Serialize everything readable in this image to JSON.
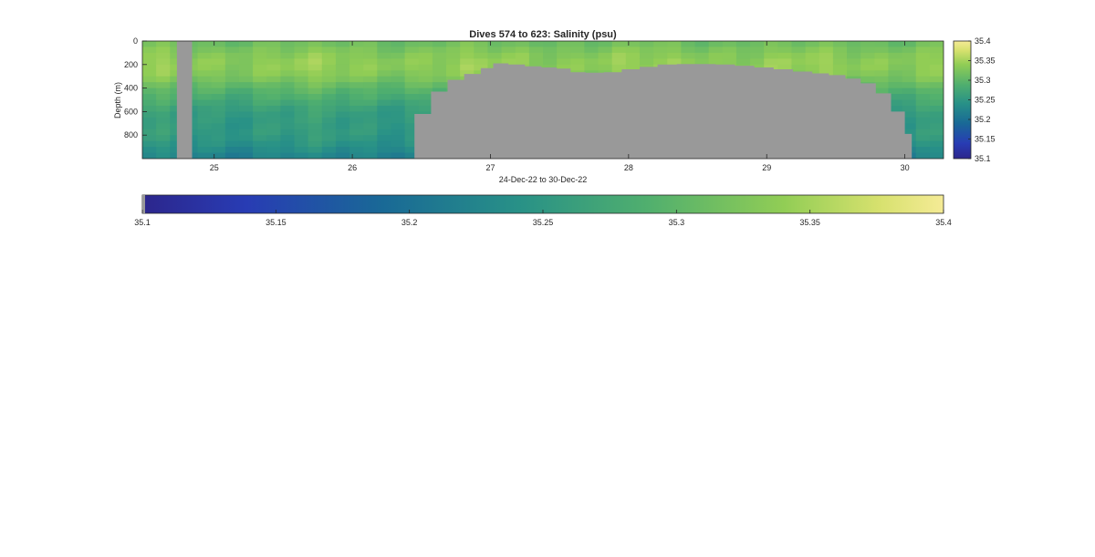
{
  "chart_data": {
    "type": "heatmap",
    "title": "Dives 574 to 623: Salinity (psu)",
    "xlabel": "24-Dec-22 to 30-Dec-22",
    "ylabel": "Depth (m)",
    "x_tick_labels": [
      "25",
      "26",
      "27",
      "28",
      "29",
      "30"
    ],
    "x_ticks": [
      25,
      26,
      27,
      28,
      29,
      30
    ],
    "xlim": [
      24.48,
      30.28
    ],
    "y_tick_labels": [
      "0",
      "200",
      "400",
      "600",
      "800"
    ],
    "y_ticks": [
      0,
      200,
      400,
      600,
      800
    ],
    "ylim": [
      0,
      1000
    ],
    "y_reversed": true,
    "colormap": "parula",
    "clim": [
      35.1,
      35.4
    ],
    "colorbar_ticks": [
      35.1,
      35.15,
      35.2,
      35.25,
      35.3,
      35.35,
      35.4
    ],
    "colorbar_tick_labels": [
      "35.1",
      "35.15",
      "35.2",
      "35.25",
      "35.3",
      "35.35",
      "35.4"
    ],
    "missing_color": "#999999",
    "missing_column": [
      24.73,
      24.84
    ],
    "seafloor_depth_profile": {
      "x": [
        26.45,
        26.57,
        26.69,
        26.81,
        26.93,
        27.02,
        27.13,
        27.25,
        27.37,
        27.48,
        27.58,
        27.69,
        27.82,
        27.95,
        28.08,
        28.21,
        28.35,
        28.49,
        28.63,
        28.77,
        28.91,
        29.05,
        29.19,
        29.33,
        29.45,
        29.57,
        29.68,
        29.79,
        29.9,
        30.0,
        30.05
      ],
      "depth": [
        620,
        430,
        330,
        280,
        230,
        190,
        200,
        215,
        225,
        235,
        265,
        270,
        265,
        240,
        220,
        200,
        195,
        195,
        200,
        210,
        225,
        240,
        260,
        275,
        290,
        320,
        360,
        445,
        600,
        790,
        1000
      ]
    },
    "profile_layers": [
      {
        "depth": 0,
        "salinity": 35.31
      },
      {
        "depth": 100,
        "salinity": 35.33
      },
      {
        "depth": 200,
        "salinity": 35.34
      },
      {
        "depth": 300,
        "salinity": 35.33
      },
      {
        "depth": 400,
        "salinity": 35.3
      },
      {
        "depth": 500,
        "salinity": 35.28
      },
      {
        "depth": 600,
        "salinity": 35.26
      },
      {
        "depth": 700,
        "salinity": 35.255
      },
      {
        "depth": 800,
        "salinity": 35.255
      },
      {
        "depth": 900,
        "salinity": 35.24
      },
      {
        "depth": 1000,
        "salinity": 35.22
      }
    ],
    "grid": false,
    "colorbars": [
      "right",
      "bottom"
    ]
  }
}
